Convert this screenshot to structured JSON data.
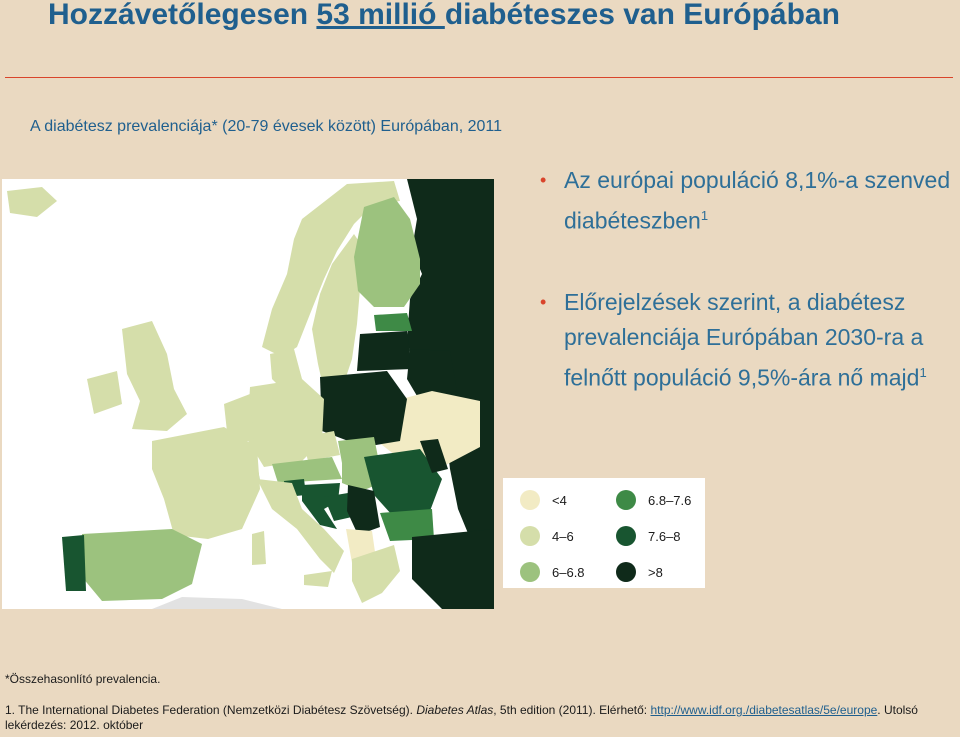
{
  "title": {
    "before": "Hozzávetőlegesen ",
    "underlined": "53 millió ",
    "after": "diabéteszes van Európában"
  },
  "subtitle": "A diabétesz prevalenciája* (20-79 évesek között) Európában, 2011",
  "bullets": [
    {
      "text": "Az európai populáció 8,1%-a szenved diabéteszben",
      "ref": "1"
    },
    {
      "text": "Előrejelzések szerint, a diabétesz prevalenciája Európában 2030-ra a felnőtt populáció 9,5%-ára  nő majd",
      "ref": "1"
    }
  ],
  "legend": [
    {
      "label": "<4",
      "color": "#f2ebc4"
    },
    {
      "label": "4–6",
      "color": "#d5deaa"
    },
    {
      "label": "6–6.8",
      "color": "#9cc27e"
    },
    {
      "label": "6.8–7.6",
      "color": "#3e8a46"
    },
    {
      "label": "7.6–8",
      "color": "#185530"
    },
    {
      "label": ">8",
      "color": "#0f2a1a"
    }
  ],
  "colors": {
    "accent_red": "#d9442b",
    "title_blue": "#1f5f8e",
    "sea": "#ffffff",
    "nodata": "#e2e2e2"
  },
  "footnote": "*Összehasonlító prevalencia.",
  "reference": {
    "prefix": "1. The International Diabetes Federation (Nemzetközi Diabétesz Szövetség). ",
    "italic": "Diabetes Atlas",
    "middle": ", 5th edition (2011). Elérhető: ",
    "link": "http://www.idf.org./diabetesatlas/5e/europe",
    "suffix": ". Utolsó lekérdezés: 2012. október"
  }
}
